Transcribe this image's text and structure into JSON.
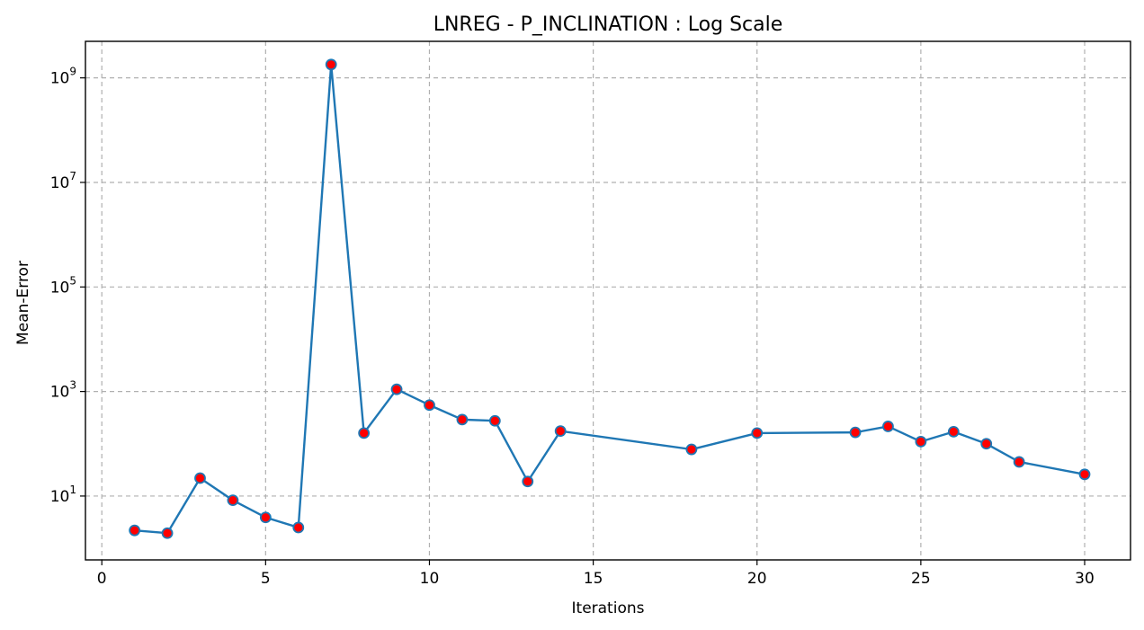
{
  "chart_data": {
    "type": "line",
    "title": "LNREG - P_INCLINATION : Log Scale",
    "xlabel": "Iterations",
    "ylabel": "Mean-Error",
    "yscale": "log",
    "xlim": [
      -0.5,
      31.4
    ],
    "ylim": [
      0.6,
      5000000000
    ],
    "xticks": [
      0,
      5,
      10,
      15,
      20,
      25,
      30
    ],
    "yticks": [
      10,
      1000,
      100000,
      10000000,
      1000000000
    ],
    "ytick_labels": [
      {
        "base": "10",
        "exp": "1"
      },
      {
        "base": "10",
        "exp": "3"
      },
      {
        "base": "10",
        "exp": "5"
      },
      {
        "base": "10",
        "exp": "7"
      },
      {
        "base": "10",
        "exp": "9"
      }
    ],
    "grid": true,
    "colors": {
      "line": "#1f77b4",
      "marker_fill": "#ff0000",
      "marker_edge": "#1f77b4"
    },
    "series": [
      {
        "x": [
          1,
          2,
          3,
          4,
          5,
          6,
          7,
          8,
          9,
          10,
          11,
          12,
          13,
          14,
          18,
          20,
          23,
          24,
          25,
          26,
          27,
          28,
          30
        ],
        "y": [
          2.2,
          1.95,
          22,
          8.3,
          3.9,
          2.5,
          1800000000,
          160,
          1100,
          550,
          290,
          275,
          19,
          175,
          78,
          160,
          165,
          215,
          110,
          170,
          100,
          45,
          26
        ]
      }
    ]
  }
}
